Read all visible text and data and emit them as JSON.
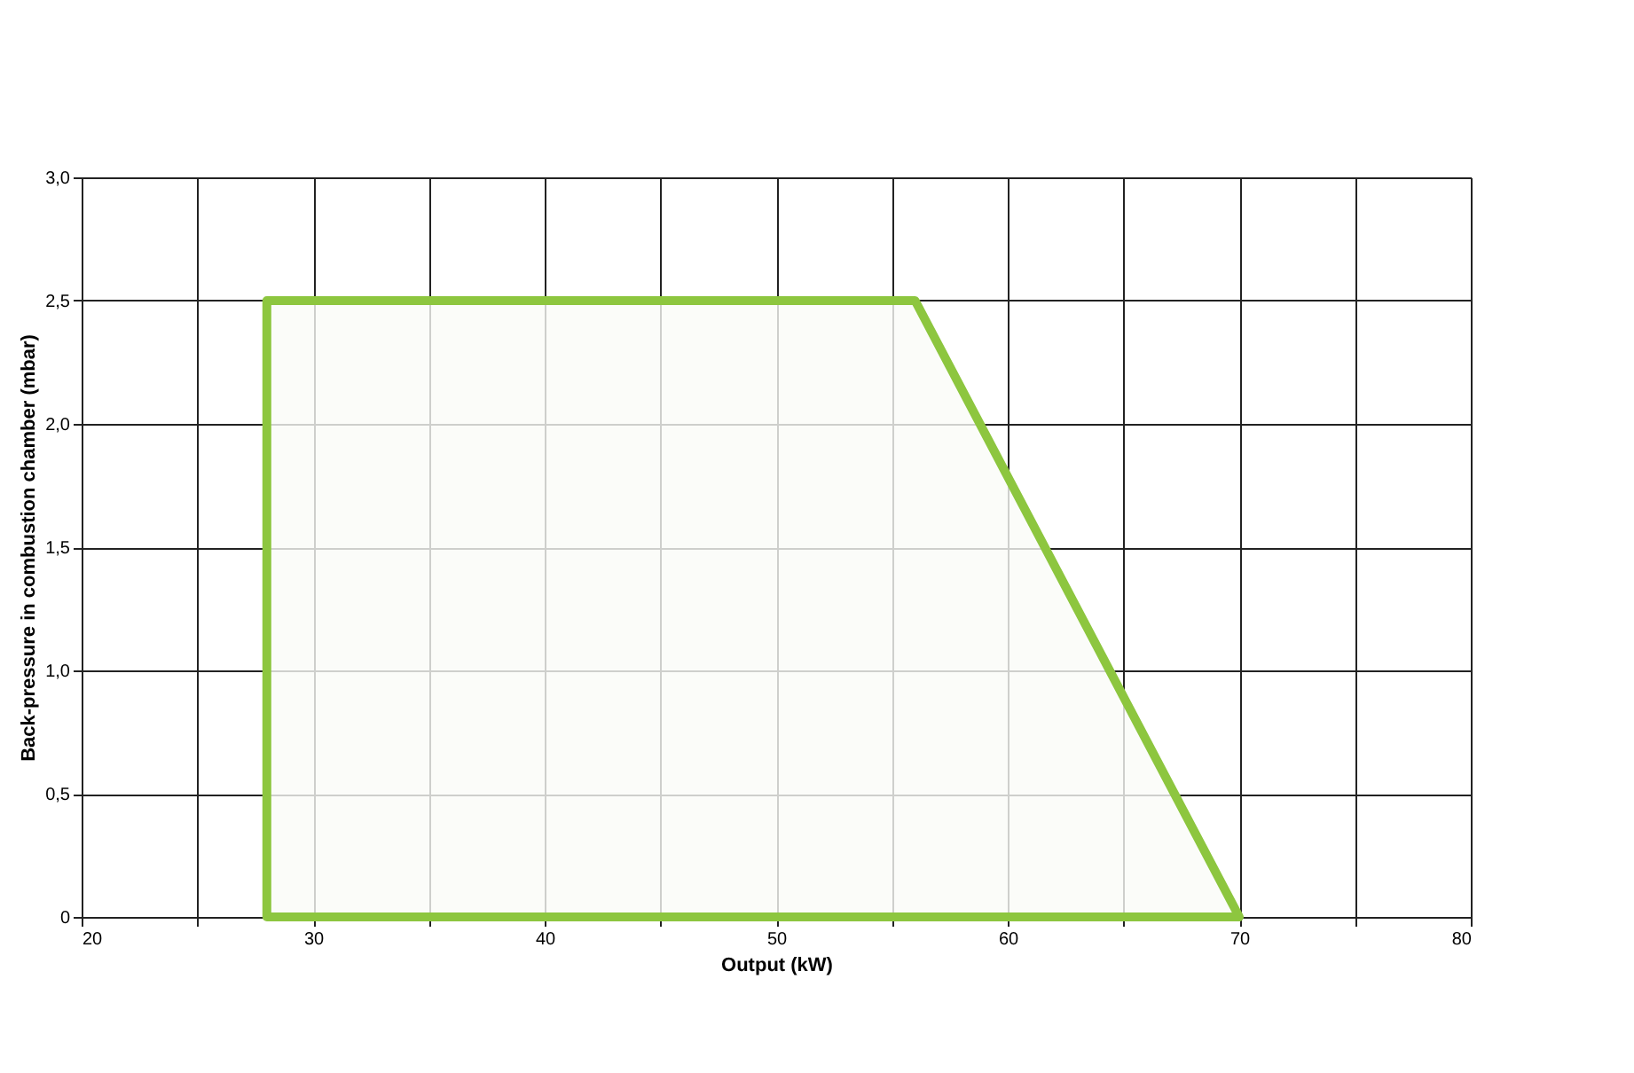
{
  "chart_data": {
    "type": "area",
    "xlabel": "Output (kW)",
    "ylabel": "Back-pressure in combustion chamber (mbar)",
    "series": [
      {
        "color": "#8dc63f",
        "x": [
          28,
          56,
          70
        ],
        "values": [
          2.5,
          2.5,
          0
        ]
      }
    ],
    "xlim": [
      20,
      80
    ],
    "ylim": [
      0,
      3
    ],
    "xticks": [
      20,
      {
        "value": 25,
        "label": null
      },
      30,
      {
        "value": 35,
        "label": null
      },
      40,
      {
        "value": 45,
        "label": null
      },
      50,
      {
        "value": 55,
        "label": null
      },
      60,
      {
        "value": 65,
        "label": null
      },
      70,
      {
        "value": 75,
        "label": null
      },
      80
    ],
    "yticks": [
      {
        "value": 0,
        "label": "0"
      },
      {
        "value": 0.5,
        "label": "0,5"
      },
      {
        "value": 1,
        "label": "1,0"
      },
      {
        "value": 1.5,
        "label": "1,5"
      },
      {
        "value": 2,
        "label": "2,0"
      },
      {
        "value": 2.5,
        "label": "2,5"
      },
      {
        "value": 3,
        "label": "3,0"
      }
    ],
    "grid": true,
    "legend": false
  }
}
